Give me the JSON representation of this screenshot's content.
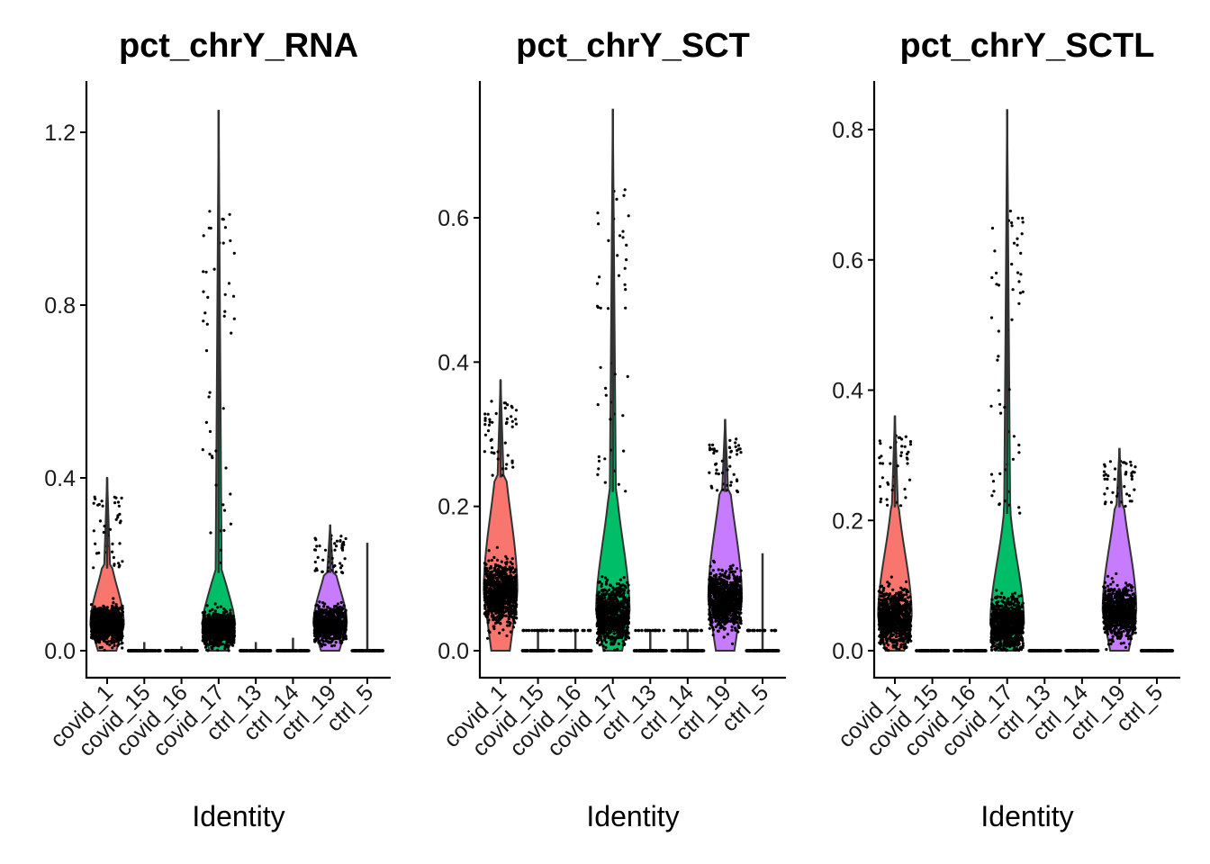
{
  "chart_data": [
    {
      "type": "violin",
      "title": "pct_chrY_RNA",
      "xlabel": "Identity",
      "ylabel": "",
      "ylim": [
        -0.06,
        1.31
      ],
      "yticks": [
        0.0,
        0.4,
        0.8,
        1.2
      ],
      "ytick_labels": [
        "0.0",
        "0.4",
        "0.8",
        "1.2"
      ],
      "categories": [
        "covid_1",
        "covid_15",
        "covid_16",
        "covid_17",
        "ctrl_13",
        "ctrl_14",
        "ctrl_19",
        "ctrl_5"
      ],
      "colors": [
        "#F8766D",
        "#CD9600",
        "#7CAE00",
        "#00BE67",
        "#00BFC4",
        "#00A9FF",
        "#C77CFF",
        "#FF61CC"
      ],
      "series": [
        {
          "name": "covid_1",
          "max": 0.4,
          "median": 0.06,
          "bulk_upper": 0.19,
          "spread": 0.13
        },
        {
          "name": "covid_15",
          "max": 0.02,
          "median": 0.0,
          "bulk_upper": 0.0,
          "spread": 0.0
        },
        {
          "name": "covid_16",
          "max": 0.01,
          "median": 0.0,
          "bulk_upper": 0.0,
          "spread": 0.0
        },
        {
          "name": "covid_17",
          "max": 1.25,
          "median": 0.05,
          "bulk_upper": 0.18,
          "spread": 0.12
        },
        {
          "name": "ctrl_13",
          "max": 0.02,
          "median": 0.0,
          "bulk_upper": 0.0,
          "spread": 0.0
        },
        {
          "name": "ctrl_14",
          "max": 0.03,
          "median": 0.0,
          "bulk_upper": 0.0,
          "spread": 0.0
        },
        {
          "name": "ctrl_19",
          "max": 0.29,
          "median": 0.06,
          "bulk_upper": 0.18,
          "spread": 0.12
        },
        {
          "name": "ctrl_5",
          "max": 0.25,
          "median": 0.0,
          "bulk_upper": 0.0,
          "spread": 0.0
        }
      ]
    },
    {
      "type": "violin",
      "title": "pct_chrY_SCT",
      "xlabel": "Identity",
      "ylabel": "",
      "ylim": [
        -0.038,
        0.79
      ],
      "yticks": [
        0.0,
        0.2,
        0.4,
        0.6
      ],
      "ytick_labels": [
        "0.0",
        "0.2",
        "0.4",
        "0.6"
      ],
      "categories": [
        "covid_1",
        "covid_15",
        "covid_16",
        "covid_17",
        "ctrl_13",
        "ctrl_14",
        "ctrl_19",
        "ctrl_5"
      ],
      "colors": [
        "#F8766D",
        "#CD9600",
        "#7CAE00",
        "#00BE67",
        "#00BFC4",
        "#00A9FF",
        "#C77CFF",
        "#FF61CC"
      ],
      "series": [
        {
          "name": "covid_1",
          "max": 0.375,
          "median": 0.08,
          "bulk_upper": 0.24,
          "spread": 0.13
        },
        {
          "name": "covid_15",
          "max": 0.028,
          "median": 0.0,
          "bulk_upper": 0.028,
          "spread": 0.0
        },
        {
          "name": "covid_16",
          "max": 0.028,
          "median": 0.0,
          "bulk_upper": 0.028,
          "spread": 0.0
        },
        {
          "name": "covid_17",
          "max": 0.75,
          "median": 0.05,
          "bulk_upper": 0.22,
          "spread": 0.12
        },
        {
          "name": "ctrl_13",
          "max": 0.028,
          "median": 0.0,
          "bulk_upper": 0.028,
          "spread": 0.0
        },
        {
          "name": "ctrl_14",
          "max": 0.028,
          "median": 0.0,
          "bulk_upper": 0.028,
          "spread": 0.0
        },
        {
          "name": "ctrl_19",
          "max": 0.32,
          "median": 0.07,
          "bulk_upper": 0.22,
          "spread": 0.12
        },
        {
          "name": "ctrl_5",
          "max": 0.135,
          "median": 0.0,
          "bulk_upper": 0.028,
          "spread": 0.0
        }
      ]
    },
    {
      "type": "violin",
      "title": "pct_chrY_SCTL",
      "xlabel": "Identity",
      "ylabel": "",
      "ylim": [
        -0.04,
        0.875
      ],
      "yticks": [
        0.0,
        0.2,
        0.4,
        0.6,
        0.8
      ],
      "ytick_labels": [
        "0.0",
        "0.2",
        "0.4",
        "0.6",
        "0.8"
      ],
      "categories": [
        "covid_1",
        "covid_15",
        "covid_16",
        "covid_17",
        "ctrl_13",
        "ctrl_14",
        "ctrl_19",
        "ctrl_5"
      ],
      "colors": [
        "#F8766D",
        "#CD9600",
        "#7CAE00",
        "#00BE67",
        "#00BFC4",
        "#00A9FF",
        "#C77CFF",
        "#FF61CC"
      ],
      "series": [
        {
          "name": "covid_1",
          "max": 0.36,
          "median": 0.05,
          "bulk_upper": 0.22,
          "spread": 0.13
        },
        {
          "name": "covid_15",
          "max": 0.0,
          "median": 0.0,
          "bulk_upper": 0.0,
          "spread": 0.0
        },
        {
          "name": "covid_16",
          "max": 0.0,
          "median": 0.0,
          "bulk_upper": 0.0,
          "spread": 0.0
        },
        {
          "name": "covid_17",
          "max": 0.83,
          "median": 0.04,
          "bulk_upper": 0.21,
          "spread": 0.12
        },
        {
          "name": "ctrl_13",
          "max": 0.0,
          "median": 0.0,
          "bulk_upper": 0.0,
          "spread": 0.0
        },
        {
          "name": "ctrl_14",
          "max": 0.0,
          "median": 0.0,
          "bulk_upper": 0.0,
          "spread": 0.0
        },
        {
          "name": "ctrl_19",
          "max": 0.31,
          "median": 0.06,
          "bulk_upper": 0.22,
          "spread": 0.12
        },
        {
          "name": "ctrl_5",
          "max": 0.0,
          "median": 0.0,
          "bulk_upper": 0.0,
          "spread": 0.0
        }
      ]
    }
  ]
}
